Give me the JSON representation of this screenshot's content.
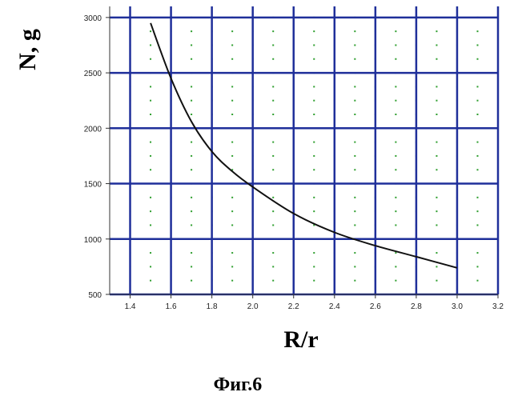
{
  "chart_data": {
    "type": "line",
    "xlabel": "R/r",
    "ylabel": "N, g",
    "caption": "Фиг.6",
    "xlim": [
      1.3,
      3.2
    ],
    "ylim": [
      500,
      3100
    ],
    "x_ticks": [
      1.4,
      1.6,
      1.8,
      2.0,
      2.2,
      2.4,
      2.6,
      2.8,
      3.0,
      3.2
    ],
    "x_tick_labels": [
      "1.4",
      "1.6",
      "1.8",
      "2.0",
      "2.2",
      "2.4",
      "2.6",
      "2.8",
      "3.0",
      "3.2"
    ],
    "y_ticks": [
      500,
      1000,
      1500,
      2000,
      2500,
      3000
    ],
    "y_tick_labels": [
      "500",
      "1000",
      "1500",
      "2000",
      "2500",
      "3000"
    ],
    "grid": true,
    "colors": {
      "grid": "#1f2f9a",
      "curve": "#111111",
      "minor_dots": "#2e9e2e"
    },
    "series": [
      {
        "x": [
          1.5,
          1.6,
          1.7,
          1.8,
          1.9,
          2.0,
          2.2,
          2.4,
          2.6,
          2.8,
          3.0
        ],
        "y": [
          2950,
          2450,
          2060,
          1790,
          1610,
          1470,
          1230,
          1060,
          940,
          840,
          740
        ]
      }
    ]
  }
}
